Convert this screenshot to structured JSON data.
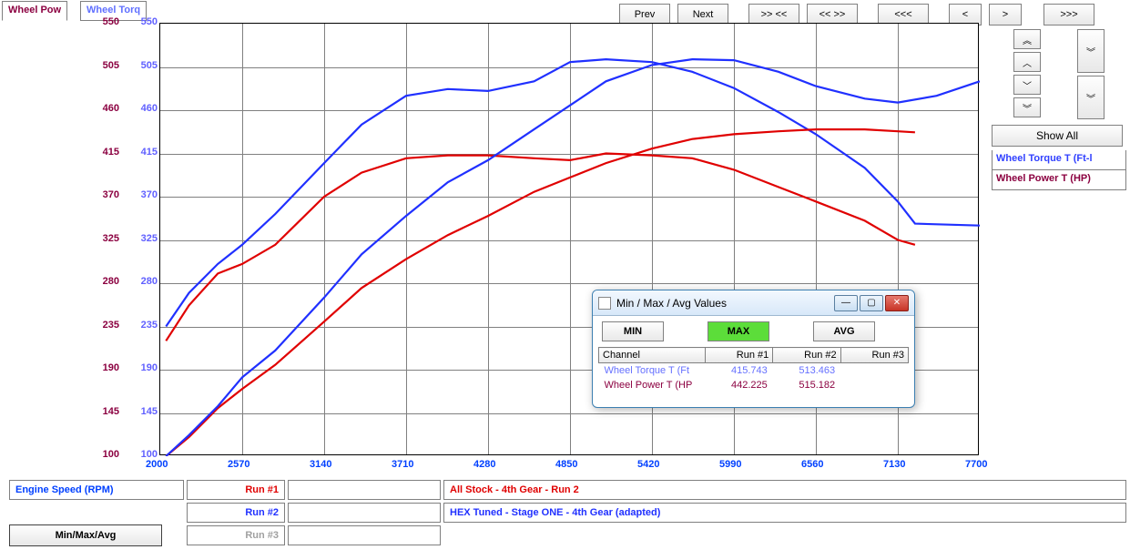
{
  "tabs": {
    "power": {
      "label": "Wheel Pow",
      "color": "#8b0040"
    },
    "torque": {
      "label": "Wheel Torq",
      "color": "#6070ff"
    }
  },
  "toolbar": {
    "prev": "Prev",
    "next": "Next",
    "inout": ">> <<",
    "outin": "<< >>",
    "left3": "<<<",
    "left1": "<",
    "right1": ">",
    "right3": ">>>"
  },
  "right": {
    "show_all": "Show All",
    "legend_torque": {
      "label": "Wheel Torque T (Ft-l",
      "color": "#3040ff"
    },
    "legend_power": {
      "label": "Wheel Power T (HP)",
      "color": "#8b0040"
    }
  },
  "chart": {
    "xlim": [
      2000,
      7700
    ],
    "ylim": [
      100,
      550
    ],
    "xticks": [
      2000,
      2570,
      3140,
      3710,
      4280,
      4850,
      5420,
      5990,
      6560,
      7130,
      7700
    ],
    "yticks": [
      100,
      145,
      190,
      235,
      280,
      325,
      370,
      415,
      460,
      505,
      550
    ],
    "y1_color": "#8b0040",
    "y2_color": "#6060ff",
    "x_color": "#0040ff",
    "grid_color": "#808080",
    "background": "#ffffff",
    "line_width": 2.2,
    "series": [
      {
        "name": "torque_run1",
        "color": "#e00000",
        "points": [
          [
            2040,
            220
          ],
          [
            2200,
            257
          ],
          [
            2400,
            290
          ],
          [
            2570,
            300
          ],
          [
            2800,
            320
          ],
          [
            3140,
            370
          ],
          [
            3400,
            395
          ],
          [
            3710,
            410
          ],
          [
            4000,
            413
          ],
          [
            4280,
            413
          ],
          [
            4600,
            410
          ],
          [
            4850,
            408
          ],
          [
            5100,
            415
          ],
          [
            5420,
            413
          ],
          [
            5700,
            410
          ],
          [
            5990,
            398
          ],
          [
            6300,
            380
          ],
          [
            6560,
            365
          ],
          [
            6900,
            345
          ],
          [
            7130,
            325
          ],
          [
            7250,
            320
          ]
        ]
      },
      {
        "name": "torque_run2",
        "color": "#2030ff",
        "points": [
          [
            2040,
            235
          ],
          [
            2200,
            270
          ],
          [
            2400,
            300
          ],
          [
            2570,
            320
          ],
          [
            2800,
            352
          ],
          [
            3140,
            405
          ],
          [
            3400,
            445
          ],
          [
            3710,
            475
          ],
          [
            4000,
            482
          ],
          [
            4280,
            480
          ],
          [
            4600,
            490
          ],
          [
            4850,
            510
          ],
          [
            5100,
            513
          ],
          [
            5420,
            510
          ],
          [
            5700,
            500
          ],
          [
            5990,
            483
          ],
          [
            6300,
            458
          ],
          [
            6560,
            435
          ],
          [
            6900,
            400
          ],
          [
            7130,
            365
          ],
          [
            7250,
            342
          ],
          [
            7700,
            340
          ]
        ]
      },
      {
        "name": "power_run1",
        "color": "#e00000",
        "points": [
          [
            2040,
            100
          ],
          [
            2200,
            120
          ],
          [
            2400,
            150
          ],
          [
            2570,
            170
          ],
          [
            2800,
            195
          ],
          [
            3140,
            240
          ],
          [
            3400,
            275
          ],
          [
            3710,
            305
          ],
          [
            4000,
            330
          ],
          [
            4280,
            350
          ],
          [
            4600,
            375
          ],
          [
            4850,
            390
          ],
          [
            5100,
            405
          ],
          [
            5420,
            420
          ],
          [
            5700,
            430
          ],
          [
            5990,
            435
          ],
          [
            6300,
            438
          ],
          [
            6560,
            440
          ],
          [
            6900,
            440
          ],
          [
            7130,
            438
          ],
          [
            7250,
            437
          ]
        ]
      },
      {
        "name": "power_run2",
        "color": "#2030ff",
        "points": [
          [
            2040,
            100
          ],
          [
            2200,
            122
          ],
          [
            2400,
            152
          ],
          [
            2570,
            182
          ],
          [
            2800,
            210
          ],
          [
            3140,
            265
          ],
          [
            3400,
            310
          ],
          [
            3710,
            350
          ],
          [
            4000,
            385
          ],
          [
            4280,
            408
          ],
          [
            4600,
            440
          ],
          [
            4850,
            465
          ],
          [
            5100,
            490
          ],
          [
            5420,
            507
          ],
          [
            5700,
            513
          ],
          [
            5990,
            512
          ],
          [
            6300,
            500
          ],
          [
            6560,
            485
          ],
          [
            6900,
            472
          ],
          [
            7130,
            468
          ],
          [
            7400,
            475
          ],
          [
            7700,
            490
          ]
        ]
      }
    ]
  },
  "bottom": {
    "x_axis_label": "Engine Speed (RPM)",
    "x_axis_label_color": "#0040ff",
    "run1": {
      "label": "Run #1",
      "color": "#e00000"
    },
    "run2": {
      "label": "Run #2",
      "color": "#2030ff"
    },
    "run3": {
      "label": "Run #3",
      "color": "#a0a0a0"
    },
    "desc1": {
      "text": "All Stock - 4th Gear - Run 2",
      "color": "#e00000"
    },
    "desc2": {
      "text": "HEX Tuned - Stage ONE - 4th Gear (adapted)",
      "color": "#2030ff"
    },
    "minmax_btn": "Min/Max/Avg"
  },
  "dialog": {
    "title": "Min / Max / Avg Values",
    "min": "MIN",
    "max": "MAX",
    "avg": "AVG",
    "headers": [
      "Channel",
      "Run #1",
      "Run #2",
      "Run #3"
    ],
    "rows": [
      {
        "channel": "Wheel Torque T (Ft",
        "color": "#6570ff",
        "run1": "415.743",
        "run2": "513.463",
        "run3": ""
      },
      {
        "channel": "Wheel Power T (HP",
        "color": "#8b0040",
        "run1": "442.225",
        "run2": "515.182",
        "run3": ""
      }
    ]
  }
}
